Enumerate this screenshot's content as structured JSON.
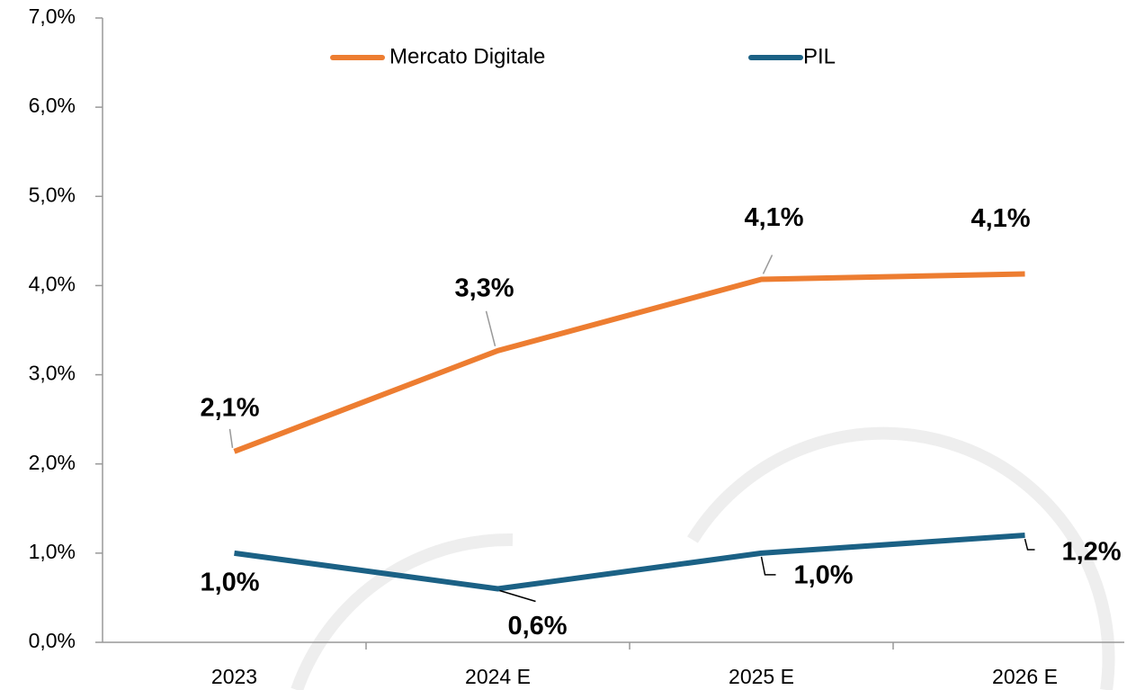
{
  "chart_data": {
    "type": "line",
    "categories": [
      "2023",
      "2024 E",
      "2025 E",
      "2026 E"
    ],
    "series": [
      {
        "name": "Mercato Digitale",
        "color": "#ed7d31",
        "values": [
          2.14,
          3.27,
          4.07,
          4.13
        ],
        "value_labels": [
          "2,1%",
          "3,3%",
          "4,1%",
          "4,1%"
        ]
      },
      {
        "name": "PIL",
        "color": "#1b6185",
        "values": [
          1.0,
          0.6,
          1.0,
          1.2
        ],
        "value_labels": [
          "1,0%",
          "0,6%",
          "1,0%",
          "1,2%"
        ]
      }
    ],
    "ylim": [
      0,
      7
    ],
    "yticks": [
      {
        "value": 0,
        "label": "0,0%"
      },
      {
        "value": 1,
        "label": "1,0%"
      },
      {
        "value": 2,
        "label": "2,0%"
      },
      {
        "value": 3,
        "label": "3,0%"
      },
      {
        "value": 4,
        "label": "4,0%"
      },
      {
        "value": 5,
        "label": "5,0%"
      },
      {
        "value": 6,
        "label": "6,0%"
      },
      {
        "value": 7,
        "label": "7,0%"
      }
    ],
    "legend": "top"
  }
}
